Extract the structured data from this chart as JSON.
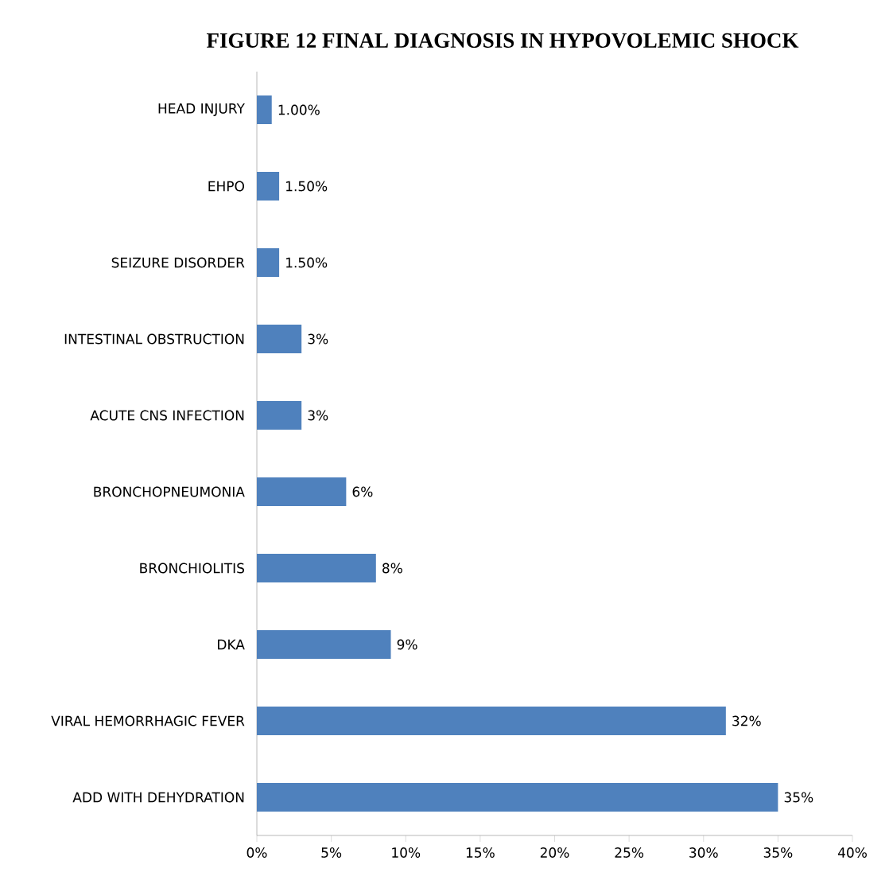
{
  "chart_data": {
    "type": "bar",
    "orientation": "horizontal",
    "title": "FIGURE 12 FINAL DIAGNOSIS IN HYPOVOLEMIC  SHOCK",
    "categories": [
      "HEAD INJURY",
      "EHPO",
      "SEIZURE DISORDER",
      "INTESTINAL OBSTRUCTION",
      "ACUTE CNS INFECTION",
      "BRONCHOPNEUMONIA",
      "BRONCHIOLITIS",
      "DKA",
      "VIRAL HEMORRHAGIC FEVER",
      "ADD WITH DEHYDRATION"
    ],
    "values": [
      1,
      1.5,
      1.5,
      3,
      3,
      6,
      8,
      9,
      31.5,
      35
    ],
    "value_labels": [
      "1.00%",
      "1.50%",
      "1.50%",
      "3%",
      "3%",
      "6%",
      "8%",
      "9%",
      "32%",
      "35%"
    ],
    "color": "#4f81bd",
    "xlim": [
      0,
      40
    ],
    "xticks": [
      {
        "value": 0,
        "label": "0%"
      },
      {
        "value": 5,
        "label": "5%"
      },
      {
        "value": 10,
        "label": "10%"
      },
      {
        "value": 15,
        "label": "15%"
      },
      {
        "value": 20,
        "label": "20%"
      },
      {
        "value": 25,
        "label": "25%"
      },
      {
        "value": 30,
        "label": "30%"
      },
      {
        "value": 35,
        "label": "35%"
      },
      {
        "value": 40,
        "label": "40%"
      }
    ]
  }
}
